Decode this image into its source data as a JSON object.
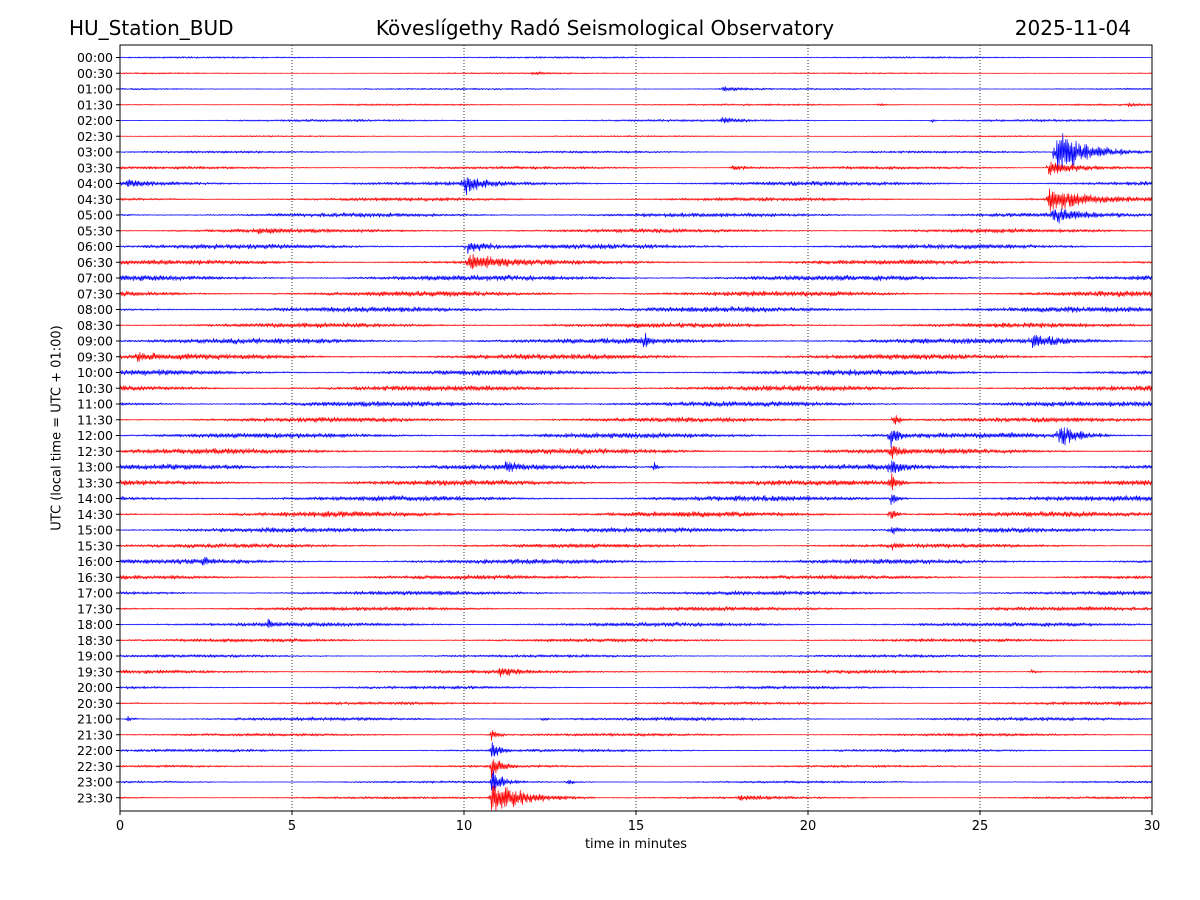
{
  "header": {
    "station": "HU_Station_BUD",
    "observatory": "Köveslígethy Radó Seismological Observatory",
    "date": "2025-11-04"
  },
  "chart_data": {
    "type": "line",
    "title": "Köveslígethy Radó Seismological Observatory",
    "xlabel": "time in minutes",
    "ylabel": "UTC (local time = UTC + 01:00)",
    "xlim": [
      0,
      30
    ],
    "x_ticks": [
      "0",
      "5",
      "10",
      "15",
      "20",
      "25",
      "30"
    ],
    "x_tick_values": [
      0,
      5,
      10,
      15,
      20,
      25,
      30
    ],
    "grid": "vertical dotted at major x ticks",
    "trace_colors": [
      "#0000ff",
      "#ff0000"
    ],
    "series": [
      {
        "name": "00:00",
        "noise": 0.15,
        "events": []
      },
      {
        "name": "00:30",
        "noise": 0.12,
        "events": [
          {
            "t": 12.0,
            "amp": 0.25,
            "dur": 1.5
          }
        ]
      },
      {
        "name": "01:00",
        "noise": 0.15,
        "events": [
          {
            "t": 17.5,
            "amp": 0.6,
            "dur": 1.5
          }
        ]
      },
      {
        "name": "01:30",
        "noise": 0.15,
        "events": [
          {
            "t": 22.0,
            "amp": 0.3,
            "dur": 1.0
          },
          {
            "t": 29.3,
            "amp": 0.6,
            "dur": 0.7
          }
        ]
      },
      {
        "name": "02:00",
        "noise": 0.2,
        "events": [
          {
            "t": 17.5,
            "amp": 0.5,
            "dur": 1.5
          },
          {
            "t": 23.6,
            "amp": 0.6,
            "dur": 0.2
          }
        ]
      },
      {
        "name": "02:30",
        "noise": 0.12,
        "events": []
      },
      {
        "name": "03:00",
        "noise": 0.2,
        "events": [
          {
            "t": 27.2,
            "amp": 5.0,
            "dur": 2.8
          }
        ]
      },
      {
        "name": "03:30",
        "noise": 0.25,
        "events": [
          {
            "t": 17.8,
            "amp": 0.6,
            "dur": 1.5
          },
          {
            "t": 27.0,
            "amp": 1.6,
            "dur": 3.0
          }
        ]
      },
      {
        "name": "04:00",
        "noise": 0.35,
        "events": [
          {
            "t": 10.0,
            "amp": 2.0,
            "dur": 1.5
          },
          {
            "t": 0.2,
            "amp": 0.6,
            "dur": 1.5
          }
        ]
      },
      {
        "name": "04:30",
        "noise": 0.3,
        "events": [
          {
            "t": 27.0,
            "amp": 2.6,
            "dur": 3.0
          }
        ]
      },
      {
        "name": "05:00",
        "noise": 0.35,
        "events": [
          {
            "t": 27.1,
            "amp": 1.8,
            "dur": 2.0
          }
        ]
      },
      {
        "name": "05:30",
        "noise": 0.35,
        "events": [
          {
            "t": 4.0,
            "amp": 0.5,
            "dur": 1.0
          }
        ]
      },
      {
        "name": "06:00",
        "noise": 0.4,
        "events": [
          {
            "t": 10.1,
            "amp": 1.5,
            "dur": 1.5
          }
        ]
      },
      {
        "name": "06:30",
        "noise": 0.4,
        "events": [
          {
            "t": 10.1,
            "amp": 1.8,
            "dur": 2.5
          }
        ]
      },
      {
        "name": "07:00",
        "noise": 0.45,
        "events": []
      },
      {
        "name": "07:30",
        "noise": 0.45,
        "events": []
      },
      {
        "name": "08:00",
        "noise": 0.45,
        "events": []
      },
      {
        "name": "08:30",
        "noise": 0.4,
        "events": []
      },
      {
        "name": "09:00",
        "noise": 0.45,
        "events": [
          {
            "t": 15.2,
            "amp": 1.6,
            "dur": 0.5
          },
          {
            "t": 26.5,
            "amp": 1.2,
            "dur": 3.0
          }
        ]
      },
      {
        "name": "09:30",
        "noise": 0.45,
        "events": [
          {
            "t": 0.5,
            "amp": 0.8,
            "dur": 1.5
          }
        ]
      },
      {
        "name": "10:00",
        "noise": 0.45,
        "events": []
      },
      {
        "name": "10:30",
        "noise": 0.45,
        "events": []
      },
      {
        "name": "11:00",
        "noise": 0.45,
        "events": []
      },
      {
        "name": "11:30",
        "noise": 0.4,
        "events": [
          {
            "t": 22.5,
            "amp": 1.5,
            "dur": 0.5
          }
        ]
      },
      {
        "name": "12:00",
        "noise": 0.45,
        "events": [
          {
            "t": 27.3,
            "amp": 2.4,
            "dur": 1.5
          },
          {
            "t": 22.4,
            "amp": 2.8,
            "dur": 0.6
          }
        ]
      },
      {
        "name": "12:30",
        "noise": 0.45,
        "events": [
          {
            "t": 22.4,
            "amp": 2.0,
            "dur": 0.5
          }
        ]
      },
      {
        "name": "13:00",
        "noise": 0.45,
        "events": [
          {
            "t": 11.2,
            "amp": 1.0,
            "dur": 1.0
          },
          {
            "t": 15.5,
            "amp": 1.2,
            "dur": 0.3
          },
          {
            "t": 22.4,
            "amp": 2.5,
            "dur": 0.6
          }
        ]
      },
      {
        "name": "13:30",
        "noise": 0.45,
        "events": [
          {
            "t": 22.4,
            "amp": 2.2,
            "dur": 0.5
          }
        ]
      },
      {
        "name": "14:00",
        "noise": 0.45,
        "events": [
          {
            "t": 22.4,
            "amp": 1.8,
            "dur": 0.5
          }
        ]
      },
      {
        "name": "14:30",
        "noise": 0.45,
        "events": [
          {
            "t": 22.4,
            "amp": 1.6,
            "dur": 0.5
          }
        ]
      },
      {
        "name": "15:00",
        "noise": 0.4,
        "events": [
          {
            "t": 22.4,
            "amp": 1.2,
            "dur": 0.5
          }
        ]
      },
      {
        "name": "15:30",
        "noise": 0.35,
        "events": [
          {
            "t": 22.4,
            "amp": 0.8,
            "dur": 0.4
          }
        ]
      },
      {
        "name": "16:00",
        "noise": 0.4,
        "events": [
          {
            "t": 2.4,
            "amp": 0.8,
            "dur": 0.6
          }
        ]
      },
      {
        "name": "16:30",
        "noise": 0.35,
        "events": []
      },
      {
        "name": "17:00",
        "noise": 0.35,
        "events": []
      },
      {
        "name": "17:30",
        "noise": 0.35,
        "events": []
      },
      {
        "name": "18:00",
        "noise": 0.35,
        "events": [
          {
            "t": 4.3,
            "amp": 0.8,
            "dur": 0.5
          }
        ]
      },
      {
        "name": "18:30",
        "noise": 0.3,
        "events": []
      },
      {
        "name": "19:00",
        "noise": 0.25,
        "events": []
      },
      {
        "name": "19:30",
        "noise": 0.3,
        "events": [
          {
            "t": 11.0,
            "amp": 1.2,
            "dur": 1.2
          },
          {
            "t": 26.5,
            "amp": 0.5,
            "dur": 0.5
          }
        ]
      },
      {
        "name": "20:00",
        "noise": 0.25,
        "events": []
      },
      {
        "name": "20:30",
        "noise": 0.25,
        "events": [
          {
            "t": 29.0,
            "amp": 0.4,
            "dur": 0.8
          }
        ]
      },
      {
        "name": "21:00",
        "noise": 0.3,
        "events": [
          {
            "t": 0.2,
            "amp": 0.6,
            "dur": 0.6
          },
          {
            "t": 12.3,
            "amp": 0.5,
            "dur": 0.3
          }
        ]
      },
      {
        "name": "21:30",
        "noise": 0.25,
        "events": [
          {
            "t": 10.8,
            "amp": 1.8,
            "dur": 0.5
          }
        ]
      },
      {
        "name": "22:00",
        "noise": 0.25,
        "events": [
          {
            "t": 10.8,
            "amp": 2.2,
            "dur": 0.6
          }
        ]
      },
      {
        "name": "22:30",
        "noise": 0.2,
        "events": [
          {
            "t": 10.8,
            "amp": 2.4,
            "dur": 0.8
          }
        ]
      },
      {
        "name": "23:00",
        "noise": 0.2,
        "events": [
          {
            "t": 10.8,
            "amp": 2.6,
            "dur": 1.0
          },
          {
            "t": 13.0,
            "amp": 0.5,
            "dur": 0.8
          }
        ]
      },
      {
        "name": "23:30",
        "noise": 0.2,
        "events": [
          {
            "t": 10.8,
            "amp": 3.5,
            "dur": 3.0
          },
          {
            "t": 18.0,
            "amp": 0.4,
            "dur": 2.5
          }
        ]
      }
    ]
  }
}
